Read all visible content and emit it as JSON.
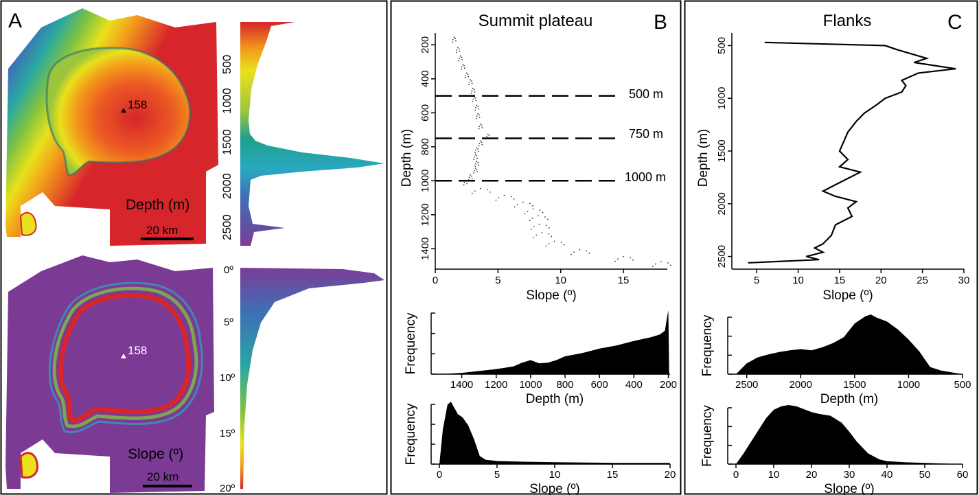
{
  "panels": {
    "A": {
      "letter": "A",
      "depth_map": {
        "peak_label": "158",
        "legend_label": "Depth (m)",
        "scale_bar": "20 km",
        "colorbar_ticks": [
          "500",
          "1000",
          "1500",
          "2000",
          "2500"
        ]
      },
      "slope_map": {
        "peak_label": "158",
        "legend_label": "Slope (º)",
        "scale_bar": "20 km",
        "colorbar_ticks": [
          "0º",
          "5º",
          "10º",
          "15º",
          "20º"
        ]
      }
    },
    "B": {
      "letter": "B",
      "title": "Summit plateau",
      "reference_lines": [
        "500 m",
        "750 m",
        "1000 m"
      ]
    },
    "C": {
      "letter": "C",
      "title": "Flanks"
    }
  },
  "colors": {
    "depth_ramp": [
      "#d6252b",
      "#f39a1b",
      "#e9e11c",
      "#7fc241",
      "#29a8a2",
      "#3e6fb6",
      "#7c3d97"
    ],
    "slope_ramp": [
      "#7c3d97",
      "#3e6fb6",
      "#29a8a2",
      "#7fc241",
      "#e9e11c",
      "#f39a1b",
      "#d6252b"
    ]
  },
  "chart_data": [
    {
      "id": "B-profile",
      "type": "scatter",
      "xlabel": "Slope (º)",
      "ylabel": "Depth (m)",
      "xlim": [
        0,
        18.5
      ],
      "ylim": [
        1520,
        130
      ],
      "xticks": [
        0,
        5,
        10,
        15
      ],
      "yticks": [
        200,
        400,
        600,
        800,
        1000,
        1200,
        1400
      ],
      "reference_depths": [
        500,
        750,
        1000
      ],
      "points": [
        [
          1.5,
          170
        ],
        [
          1.8,
          230
        ],
        [
          2.0,
          280
        ],
        [
          2.2,
          330
        ],
        [
          2.5,
          380
        ],
        [
          2.8,
          420
        ],
        [
          3.0,
          470
        ],
        [
          3.1,
          520
        ],
        [
          3.3,
          570
        ],
        [
          3.4,
          620
        ],
        [
          3.6,
          680
        ],
        [
          4.2,
          740
        ],
        [
          3.6,
          780
        ],
        [
          3.3,
          820
        ],
        [
          3.2,
          860
        ],
        [
          3.3,
          900
        ],
        [
          3.2,
          940
        ],
        [
          2.8,
          980
        ],
        [
          2.4,
          1010
        ],
        [
          3.6,
          1060
        ],
        [
          5.5,
          1100
        ],
        [
          7.0,
          1140
        ],
        [
          7.8,
          1180
        ],
        [
          8.2,
          1220
        ],
        [
          8.3,
          1270
        ],
        [
          8.5,
          1320
        ],
        [
          9.5,
          1370
        ],
        [
          11.5,
          1420
        ],
        [
          15.0,
          1460
        ],
        [
          18.0,
          1490
        ]
      ]
    },
    {
      "id": "B-depth-histogram",
      "type": "area",
      "xlabel": "Depth (m)",
      "ylabel": "Frequency",
      "xlim": [
        1530,
        190
      ],
      "xticks": [
        1400,
        1200,
        1000,
        800,
        600,
        400,
        200
      ],
      "x": [
        1530,
        1400,
        1300,
        1200,
        1100,
        1050,
        1000,
        950,
        900,
        850,
        800,
        700,
        600,
        500,
        400,
        300,
        250,
        220,
        210,
        200,
        195
      ],
      "values": [
        0.0,
        0.02,
        0.05,
        0.08,
        0.12,
        0.18,
        0.22,
        0.17,
        0.18,
        0.22,
        0.28,
        0.33,
        0.4,
        0.45,
        0.52,
        0.58,
        0.62,
        0.68,
        0.85,
        1.0,
        0.0
      ]
    },
    {
      "id": "B-slope-histogram",
      "type": "area",
      "xlabel": "Slope (º)",
      "ylabel": "Frequency",
      "xlim": [
        0,
        20
      ],
      "xticks": [
        0,
        5,
        10,
        15,
        20
      ],
      "x": [
        0.0,
        0.3,
        0.7,
        1.0,
        1.3,
        1.6,
        2.0,
        2.5,
        3.0,
        3.5,
        4.0,
        5.0,
        7.0,
        10.0,
        15.0,
        20.0
      ],
      "values": [
        0.0,
        0.55,
        0.95,
        1.0,
        0.9,
        0.8,
        0.75,
        0.62,
        0.4,
        0.13,
        0.07,
        0.05,
        0.04,
        0.03,
        0.02,
        0.02
      ]
    },
    {
      "id": "C-profile",
      "type": "line",
      "xlabel": "Slope (º)",
      "ylabel": "Depth (m)",
      "xlim": [
        2,
        30
      ],
      "ylim": [
        2620,
        380
      ],
      "xticks": [
        5,
        10,
        15,
        20,
        25,
        30
      ],
      "yticks": [
        500,
        1000,
        1500,
        2000,
        2500
      ],
      "points": [
        [
          6.0,
          470
        ],
        [
          20.5,
          500
        ],
        [
          22.0,
          540
        ],
        [
          25.5,
          620
        ],
        [
          24.0,
          660
        ],
        [
          29.0,
          720
        ],
        [
          24.5,
          760
        ],
        [
          22.5,
          830
        ],
        [
          23.0,
          880
        ],
        [
          22.5,
          940
        ],
        [
          20.5,
          1000
        ],
        [
          19.5,
          1060
        ],
        [
          18.0,
          1140
        ],
        [
          17.0,
          1220
        ],
        [
          16.0,
          1320
        ],
        [
          15.5,
          1410
        ],
        [
          15.0,
          1500
        ],
        [
          16.0,
          1580
        ],
        [
          15.0,
          1650
        ],
        [
          17.5,
          1700
        ],
        [
          16.0,
          1760
        ],
        [
          14.5,
          1820
        ],
        [
          13.0,
          1880
        ],
        [
          14.5,
          1930
        ],
        [
          17.0,
          1980
        ],
        [
          16.0,
          2040
        ],
        [
          16.5,
          2120
        ],
        [
          14.5,
          2200
        ],
        [
          14.0,
          2300
        ],
        [
          13.0,
          2380
        ],
        [
          12.0,
          2420
        ],
        [
          13.0,
          2460
        ],
        [
          11.0,
          2500
        ],
        [
          12.5,
          2530
        ],
        [
          4.0,
          2560
        ]
      ]
    },
    {
      "id": "C-depth-histogram",
      "type": "area",
      "xlabel": "Depth (m)",
      "ylabel": "Frequency",
      "xlim": [
        2600,
        500
      ],
      "xticks": [
        2500,
        2000,
        1500,
        1000,
        500
      ],
      "x": [
        2600,
        2500,
        2400,
        2300,
        2200,
        2100,
        2000,
        1900,
        1800,
        1700,
        1600,
        1500,
        1400,
        1350,
        1300,
        1200,
        1100,
        1000,
        900,
        800,
        700,
        600,
        500
      ],
      "values": [
        0.0,
        0.18,
        0.28,
        0.33,
        0.37,
        0.4,
        0.42,
        0.4,
        0.45,
        0.52,
        0.62,
        0.85,
        0.97,
        1.0,
        0.95,
        0.88,
        0.75,
        0.58,
        0.38,
        0.12,
        0.06,
        0.03,
        0.0
      ]
    },
    {
      "id": "C-slope-histogram",
      "type": "area",
      "xlabel": "Slope (º)",
      "ylabel": "Frequency",
      "xlim": [
        0,
        60
      ],
      "xticks": [
        0,
        10,
        20,
        30,
        40,
        50,
        60
      ],
      "x": [
        0,
        2,
        5,
        8,
        10,
        12,
        14,
        16,
        18,
        20,
        22,
        25,
        28,
        30,
        32,
        35,
        38,
        40,
        45,
        50,
        55,
        58
      ],
      "values": [
        0.0,
        0.18,
        0.48,
        0.78,
        0.92,
        0.98,
        1.0,
        0.98,
        0.93,
        0.88,
        0.85,
        0.82,
        0.7,
        0.55,
        0.38,
        0.18,
        0.08,
        0.05,
        0.03,
        0.02,
        0.01,
        0.0
      ]
    }
  ]
}
